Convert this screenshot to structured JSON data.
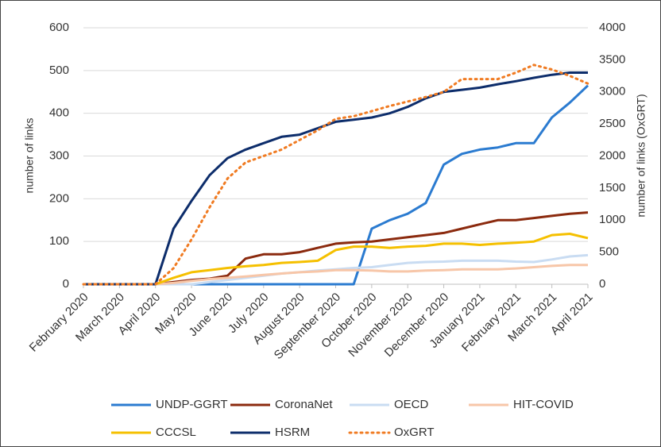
{
  "chart_data": {
    "type": "line",
    "y_label": "number of links",
    "y2_label": "number of links (OxGRT)",
    "x": [
      0,
      0.5,
      1,
      1.5,
      2,
      2.5,
      3,
      3.5,
      4,
      4.5,
      5,
      5.5,
      6,
      6.5,
      7,
      7.5,
      8,
      8.5,
      9,
      9.5,
      10,
      10.5,
      11,
      11.5,
      12,
      12.5,
      13,
      13.5,
      14
    ],
    "xlim": [
      0,
      14
    ],
    "xticks": [
      {
        "value": 0,
        "label": "February 2020"
      },
      {
        "value": 1,
        "label": "March 2020"
      },
      {
        "value": 2,
        "label": "April 2020"
      },
      {
        "value": 3,
        "label": "May 2020"
      },
      {
        "value": 4,
        "label": "June 2020"
      },
      {
        "value": 5,
        "label": "July 2020"
      },
      {
        "value": 6,
        "label": "August 2020"
      },
      {
        "value": 7,
        "label": "September 2020"
      },
      {
        "value": 8,
        "label": "October 2020"
      },
      {
        "value": 9,
        "label": "November 2020"
      },
      {
        "value": 10,
        "label": "December 2020"
      },
      {
        "value": 11,
        "label": "January 2021"
      },
      {
        "value": 12,
        "label": "February 2021"
      },
      {
        "value": 13,
        "label": "March 2021"
      },
      {
        "value": 14,
        "label": "April 2021"
      }
    ],
    "ylim": [
      0,
      600
    ],
    "yticks": [
      0,
      100,
      200,
      300,
      400,
      500,
      600
    ],
    "y2lim": [
      0,
      4000
    ],
    "y2ticks": [
      0,
      500,
      1000,
      1500,
      2000,
      2500,
      3000,
      3500,
      4000
    ],
    "grid": true,
    "legend": "bottom",
    "series": [
      {
        "name": "UNDP-GGRT",
        "color": "#2b7bd0",
        "style": "solid",
        "values": [
          0,
          0,
          0,
          0,
          0,
          0,
          0,
          0,
          0,
          0,
          0,
          0,
          0,
          0,
          0,
          0,
          130,
          150,
          165,
          190,
          280,
          305,
          315,
          320,
          330,
          330,
          390,
          425,
          465
        ]
      },
      {
        "name": "CoronaNet",
        "color": "#8b2a0e",
        "style": "solid",
        "values": [
          0,
          0,
          0,
          0,
          0,
          5,
          10,
          13,
          20,
          60,
          70,
          70,
          75,
          85,
          95,
          98,
          100,
          105,
          110,
          115,
          120,
          130,
          140,
          150,
          150,
          155,
          160,
          165,
          168
        ]
      },
      {
        "name": "OECD",
        "color": "#c9dcf2",
        "style": "solid",
        "values": [
          0,
          0,
          0,
          0,
          0,
          0,
          0,
          5,
          10,
          15,
          20,
          25,
          28,
          32,
          35,
          38,
          40,
          45,
          50,
          52,
          53,
          55,
          55,
          55,
          53,
          52,
          58,
          65,
          68
        ]
      },
      {
        "name": "HIT-COVID",
        "color": "#f7c6a8",
        "style": "solid",
        "values": [
          0,
          0,
          0,
          0,
          0,
          3,
          8,
          12,
          15,
          18,
          22,
          25,
          28,
          30,
          33,
          33,
          32,
          30,
          30,
          32,
          33,
          35,
          35,
          35,
          37,
          40,
          43,
          45,
          45
        ]
      },
      {
        "name": "CCCSL",
        "color": "#f5c000",
        "style": "solid",
        "values": [
          0,
          0,
          0,
          0,
          0,
          15,
          28,
          33,
          38,
          42,
          45,
          50,
          52,
          55,
          80,
          88,
          88,
          85,
          88,
          90,
          95,
          95,
          92,
          95,
          97,
          100,
          115,
          118,
          108
        ]
      },
      {
        "name": "HSRM",
        "color": "#0d2d6b",
        "style": "solid",
        "values": [
          0,
          0,
          0,
          0,
          0,
          130,
          195,
          255,
          295,
          315,
          330,
          345,
          350,
          365,
          380,
          385,
          390,
          400,
          415,
          435,
          450,
          455,
          460,
          468,
          475,
          483,
          490,
          495,
          495
        ]
      },
      {
        "name": "OxGRT",
        "color": "#f07b22",
        "style": "dotted",
        "axis": "y2",
        "values": [
          0,
          0,
          0,
          0,
          0,
          250,
          700,
          1200,
          1650,
          1900,
          2000,
          2100,
          2250,
          2400,
          2580,
          2620,
          2700,
          2780,
          2850,
          2920,
          3000,
          3200,
          3200,
          3200,
          3300,
          3420,
          3350,
          3250,
          3130
        ]
      }
    ]
  }
}
